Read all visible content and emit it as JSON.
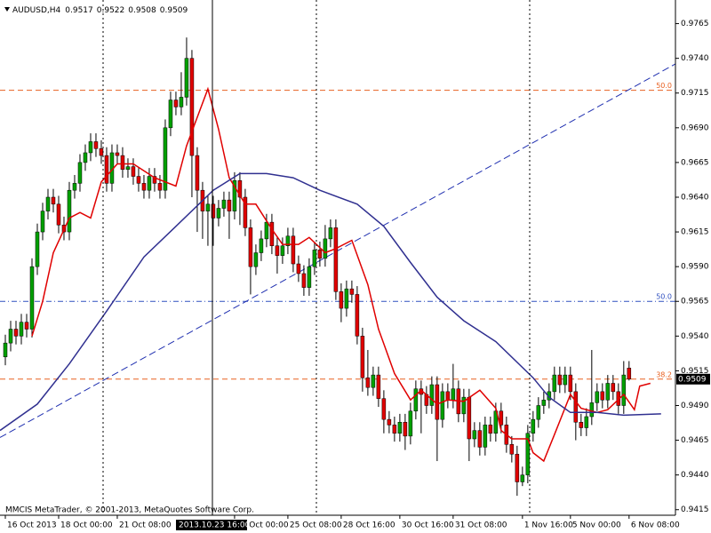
{
  "chart_data": {
    "type": "candlestick",
    "symbol": "AUDUSD,H4",
    "watermark": "MMCIS MetaTrader, © 2001-2013, MetaQuotes Software Corp.",
    "crosshair_label": "2013.10.23 16:00",
    "bull_color": "#00a000",
    "bear_color": "#e00000",
    "open": [
      0.9525,
      0.9535,
      0.9545,
      0.954,
      0.955,
      0.9545,
      0.959,
      0.9615,
      0.963,
      0.964,
      0.9635,
      0.962,
      0.9615,
      0.9645,
      0.965,
      0.9665,
      0.9672,
      0.968,
      0.9675,
      0.967,
      0.965,
      0.9672,
      0.967,
      0.966,
      0.9662,
      0.9655,
      0.965,
      0.9645,
      0.9655,
      0.965,
      0.9645,
      0.969,
      0.971,
      0.9705,
      0.9712,
      0.974,
      0.967,
      0.9645,
      0.963,
      0.9635,
      0.9625,
      0.9632,
      0.9638,
      0.963,
      0.9652,
      0.964,
      0.9618,
      0.959,
      0.96,
      0.961,
      0.9622,
      0.9605,
      0.9598,
      0.9605,
      0.9612,
      0.9592,
      0.9585,
      0.9575,
      0.959,
      0.9602,
      0.9596,
      0.961,
      0.9618,
      0.9572,
      0.956,
      0.9574,
      0.957,
      0.954,
      0.951,
      0.9503,
      0.9512,
      0.9495,
      0.948,
      0.9476,
      0.947,
      0.9478,
      0.9468,
      0.9486,
      0.9502,
      0.9498,
      0.949,
      0.9505,
      0.948,
      0.95,
      0.9494,
      0.9502,
      0.9484,
      0.9496,
      0.9466,
      0.9472,
      0.946,
      0.9476,
      0.947,
      0.9486,
      0.9476,
      0.9462,
      0.9455,
      0.9435,
      0.944,
      0.947,
      0.948,
      0.949,
      0.9494,
      0.95,
      0.9512,
      0.9505,
      0.9512,
      0.95,
      0.9478,
      0.9474,
      0.9482,
      0.9492,
      0.95,
      0.9494,
      0.9506,
      0.95,
      0.949,
      0.9517
    ],
    "high": [
      0.9541,
      0.9551,
      0.9551,
      0.9556,
      0.9556,
      0.9596,
      0.9621,
      0.9636,
      0.9646,
      0.9646,
      0.9641,
      0.9626,
      0.9651,
      0.9656,
      0.9671,
      0.9678,
      0.9686,
      0.9686,
      0.9681,
      0.9676,
      0.9678,
      0.9678,
      0.9676,
      0.9668,
      0.9668,
      0.9661,
      0.9656,
      0.9661,
      0.9661,
      0.9656,
      0.9696,
      0.9716,
      0.9716,
      0.973,
      0.9755,
      0.9746,
      0.9676,
      0.9651,
      0.9641,
      0.9641,
      0.9638,
      0.9644,
      0.9644,
      0.9658,
      0.9658,
      0.9646,
      0.9624,
      0.9606,
      0.9616,
      0.9628,
      0.9628,
      0.9611,
      0.9611,
      0.9618,
      0.9618,
      0.9598,
      0.9591,
      0.9596,
      0.9608,
      0.9608,
      0.962,
      0.9624,
      0.9624,
      0.9578,
      0.958,
      0.958,
      0.9576,
      0.9546,
      0.953,
      0.9518,
      0.9518,
      0.9501,
      0.9486,
      0.9482,
      0.9484,
      0.9484,
      0.9492,
      0.9508,
      0.9508,
      0.9504,
      0.9511,
      0.9511,
      0.9506,
      0.9506,
      0.952,
      0.9508,
      0.9502,
      0.9502,
      0.9478,
      0.9478,
      0.9482,
      0.9482,
      0.9492,
      0.9492,
      0.9482,
      0.9468,
      0.9461,
      0.9446,
      0.9476,
      0.9486,
      0.9496,
      0.95,
      0.9506,
      0.9518,
      0.9518,
      0.9518,
      0.9518,
      0.9506,
      0.9484,
      0.9488,
      0.953,
      0.9506,
      0.9506,
      0.9512,
      0.9512,
      0.9506,
      0.9522,
      0.9522
    ],
    "low": [
      0.9519,
      0.9529,
      0.9534,
      0.9534,
      0.9539,
      0.9539,
      0.9584,
      0.9609,
      0.9624,
      0.9629,
      0.9614,
      0.9609,
      0.9609,
      0.9639,
      0.9644,
      0.9659,
      0.9666,
      0.9669,
      0.9664,
      0.9644,
      0.9644,
      0.9664,
      0.9654,
      0.9654,
      0.9649,
      0.9644,
      0.9639,
      0.9639,
      0.9644,
      0.9639,
      0.9639,
      0.9684,
      0.9699,
      0.9699,
      0.9706,
      0.964,
      0.9615,
      0.961,
      0.9605,
      0.9605,
      0.9619,
      0.9626,
      0.961,
      0.9624,
      0.962,
      0.9612,
      0.957,
      0.9584,
      0.9594,
      0.9604,
      0.9599,
      0.9585,
      0.9592,
      0.9599,
      0.9586,
      0.9579,
      0.9569,
      0.9569,
      0.9584,
      0.959,
      0.959,
      0.9604,
      0.9566,
      0.955,
      0.9554,
      0.9564,
      0.9534,
      0.95,
      0.9497,
      0.9497,
      0.9489,
      0.947,
      0.947,
      0.9464,
      0.9464,
      0.9458,
      0.9462,
      0.948,
      0.947,
      0.9484,
      0.9484,
      0.945,
      0.9474,
      0.9488,
      0.9488,
      0.9478,
      0.9478,
      0.945,
      0.946,
      0.9454,
      0.9454,
      0.9464,
      0.9464,
      0.947,
      0.9456,
      0.9449,
      0.9425,
      0.9432,
      0.9434,
      0.9464,
      0.9474,
      0.9484,
      0.9488,
      0.9494,
      0.9499,
      0.9499,
      0.9494,
      0.9465,
      0.9468,
      0.9468,
      0.9476,
      0.9486,
      0.9488,
      0.9488,
      0.9494,
      0.9484,
      0.9484,
      0.9508
    ],
    "close": [
      0.9535,
      0.9545,
      0.954,
      0.955,
      0.9545,
      0.959,
      0.9615,
      0.963,
      0.964,
      0.9635,
      0.962,
      0.9615,
      0.9645,
      0.965,
      0.9665,
      0.9672,
      0.968,
      0.9675,
      0.967,
      0.965,
      0.9672,
      0.967,
      0.966,
      0.9662,
      0.9655,
      0.965,
      0.9645,
      0.9655,
      0.965,
      0.9645,
      0.969,
      0.971,
      0.9705,
      0.9712,
      0.974,
      0.967,
      0.9645,
      0.963,
      0.9635,
      0.9625,
      0.9632,
      0.9638,
      0.963,
      0.9652,
      0.964,
      0.9618,
      0.959,
      0.96,
      0.961,
      0.9622,
      0.9605,
      0.9598,
      0.9605,
      0.9612,
      0.9592,
      0.9585,
      0.9575,
      0.959,
      0.9602,
      0.9596,
      0.961,
      0.9618,
      0.9572,
      0.956,
      0.9574,
      0.957,
      0.954,
      0.951,
      0.9503,
      0.9512,
      0.9495,
      0.948,
      0.9476,
      0.947,
      0.9478,
      0.9468,
      0.9486,
      0.9502,
      0.9498,
      0.949,
      0.9505,
      0.948,
      0.95,
      0.9494,
      0.9502,
      0.9484,
      0.9496,
      0.9466,
      0.9472,
      0.946,
      0.9476,
      0.947,
      0.9486,
      0.9476,
      0.9462,
      0.9455,
      0.9435,
      0.944,
      0.947,
      0.948,
      0.949,
      0.9494,
      0.95,
      0.9512,
      0.9505,
      0.9512,
      0.95,
      0.9478,
      0.9474,
      0.9482,
      0.9492,
      0.95,
      0.9494,
      0.9506,
      0.95,
      0.949,
      0.9512,
      0.9509
    ],
    "ma_lines": [
      {
        "color": "#e00000",
        "x": [
          5,
          7,
          9,
          12,
          14,
          16,
          18,
          21,
          24,
          28,
          32,
          34,
          38,
          40,
          42,
          45,
          47,
          50,
          52,
          55,
          57,
          60,
          62,
          65,
          68,
          70,
          73,
          76,
          78,
          81,
          83,
          86,
          89,
          92,
          93,
          95,
          98,
          99,
          101,
          103,
          106,
          108,
          111,
          113,
          116,
          118,
          119,
          121
        ],
        "values": [
          0.954,
          0.9565,
          0.96,
          0.9625,
          0.9629,
          0.9625,
          0.9651,
          0.9664,
          0.9664,
          0.9654,
          0.9648,
          0.9677,
          0.9718,
          0.9689,
          0.9654,
          0.9635,
          0.9635,
          0.9617,
          0.9606,
          0.9606,
          0.9611,
          0.96,
          0.9603,
          0.9609,
          0.9577,
          0.9545,
          0.9513,
          0.9494,
          0.9501,
          0.9491,
          0.9494,
          0.9493,
          0.9501,
          0.9488,
          0.9472,
          0.9466,
          0.9466,
          0.9456,
          0.945,
          0.9469,
          0.9498,
          0.9488,
          0.9485,
          0.9487,
          0.9498,
          0.9487,
          0.9504,
          0.9506
        ]
      },
      {
        "color": "#303090",
        "x": [
          -1,
          6,
          12,
          19,
          26,
          32,
          39,
          44,
          49,
          54,
          59,
          66,
          71,
          76,
          81,
          86,
          92,
          99,
          102,
          106,
          111,
          116,
          123
        ],
        "values": [
          0.9472,
          0.9491,
          0.952,
          0.9558,
          0.9597,
          0.9619,
          0.9645,
          0.9657,
          0.9657,
          0.9654,
          0.9645,
          0.9635,
          0.9619,
          0.9593,
          0.9568,
          0.9551,
          0.9536,
          0.951,
          0.9496,
          0.9485,
          0.9485,
          0.9483,
          0.9484
        ]
      }
    ],
    "trendline": {
      "color": "#2030b0",
      "x": [
        -1,
        125.7
      ],
      "values": [
        0.9467,
        0.9736
      ]
    },
    "levels": [
      {
        "label": "50.0",
        "value": 0.9717,
        "color": "#e86020",
        "style": "dash"
      },
      {
        "label": "50.0",
        "value": 0.9565,
        "color": "#3050c0",
        "style": "dashdot"
      },
      {
        "label": "38.2",
        "value": 0.9509,
        "color": "#e86020",
        "style": "dash"
      }
    ],
    "xlim": [
      -1,
      125.7
    ],
    "ylim": [
      0.9411,
      0.9782
    ],
    "yticks": [
      0.9765,
      {
        "value": 0.974,
        "label": "0.9740"
      },
      0.9715,
      {
        "value": 0.969,
        "label": "0.9690"
      },
      0.9665,
      {
        "value": 0.964,
        "label": "0.9640"
      },
      0.9615,
      {
        "value": 0.959,
        "label": "0.9590"
      },
      0.9565,
      {
        "value": 0.954,
        "label": "0.9540"
      },
      0.9515,
      {
        "value": 0.949,
        "label": "0.9490"
      },
      0.9465,
      {
        "value": 0.944,
        "label": "0.9440"
      },
      0.9415
    ],
    "xticks": [
      {
        "value": 0,
        "label": "16 Oct 2013"
      },
      {
        "value": 10,
        "label": "18 Oct 00:00"
      },
      {
        "value": 21,
        "label": "21 Oct 08:00"
      },
      {
        "value": 43,
        "label": "24 Oct 00:00"
      },
      {
        "value": 53,
        "label": "25 Oct 08:00"
      },
      {
        "value": 63,
        "label": "28 Oct 16:00"
      },
      {
        "value": 74,
        "label": "30 Oct 16:00"
      },
      {
        "value": 84,
        "label": "31 Oct 08:00"
      },
      {
        "value": 97,
        "label": "1 Nov 16:00"
      },
      {
        "value": 106,
        "label": "5 Nov 00:00"
      },
      {
        "value": 117,
        "label": "6 Nov 08:00"
      }
    ]
  }
}
